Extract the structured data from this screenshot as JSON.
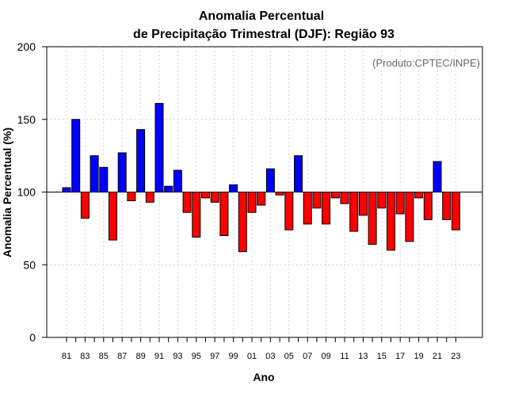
{
  "chart_data": {
    "type": "bar",
    "title_line1": "Anomalia Percentual",
    "title_line2": "de Precipitação Trimestral (DJF): Região 93",
    "credit": "(Produto:CPTEC/INPE)",
    "xlabel": "Ano",
    "ylabel": "Anomalia Percentual (%)",
    "ylim": [
      0,
      200
    ],
    "yticks": [
      0,
      50,
      100,
      150,
      200
    ],
    "baseline": 100,
    "grid": true,
    "colors": {
      "above": "#0000ff",
      "below": "#ff0000",
      "outline": "#000000"
    },
    "years": [
      "81",
      "82",
      "83",
      "84",
      "85",
      "86",
      "87",
      "88",
      "89",
      "90",
      "91",
      "92",
      "93",
      "94",
      "95",
      "96",
      "97",
      "98",
      "99",
      "00",
      "01",
      "02",
      "03",
      "04",
      "05",
      "06",
      "07",
      "08",
      "09",
      "10",
      "11",
      "12",
      "13",
      "14",
      "15",
      "16",
      "17",
      "18",
      "19",
      "20",
      "21",
      "22",
      "23"
    ],
    "xtick_labels": [
      "81",
      "83",
      "85",
      "87",
      "89",
      "91",
      "93",
      "95",
      "97",
      "99",
      "01",
      "03",
      "05",
      "07",
      "09",
      "11",
      "13",
      "15",
      "17",
      "19",
      "21",
      "23"
    ],
    "values": [
      103,
      150,
      82,
      125,
      117,
      67,
      127,
      94,
      143,
      93,
      161,
      104,
      115,
      86,
      69,
      96,
      93,
      70,
      105,
      59,
      86,
      91,
      116,
      98,
      74,
      125,
      78,
      89,
      78,
      96,
      92,
      73,
      84,
      64,
      89,
      60,
      85,
      66,
      96,
      81,
      121,
      81,
      74
    ]
  }
}
